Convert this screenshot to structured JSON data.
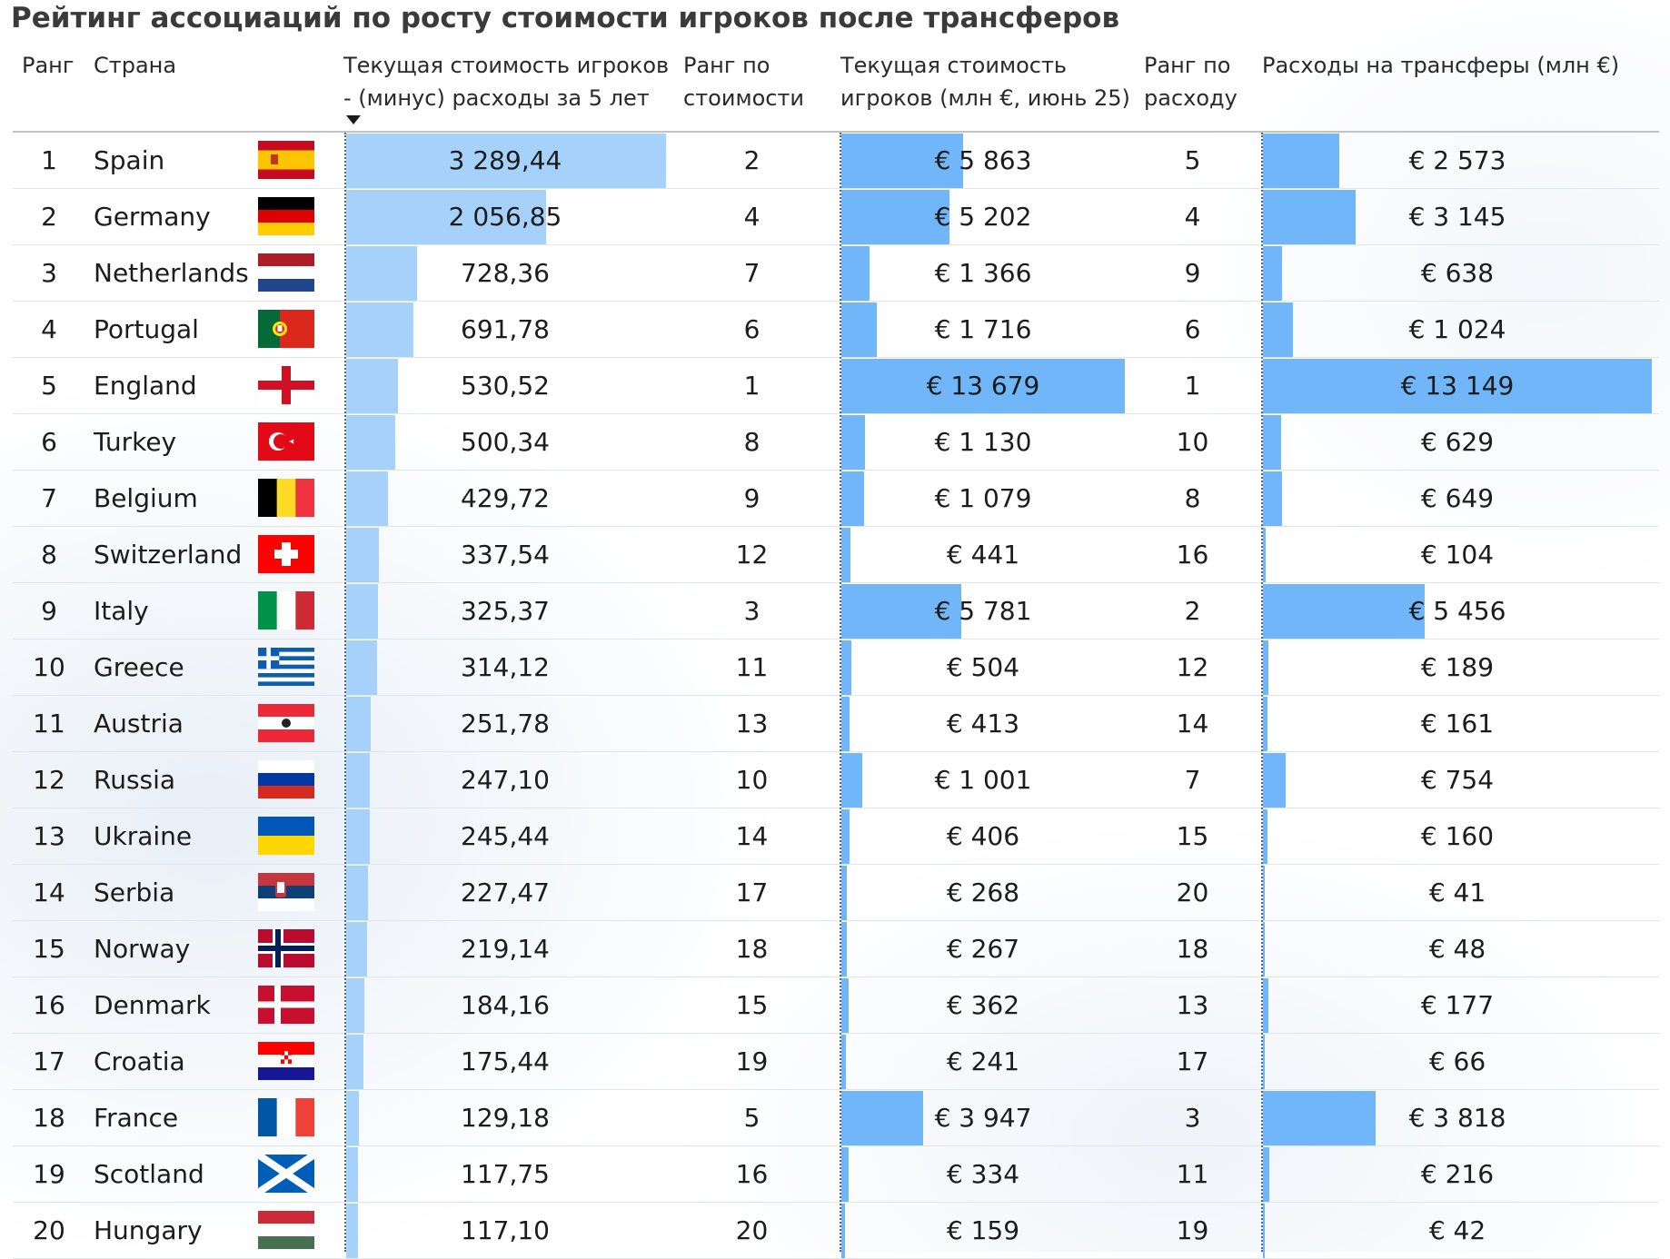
{
  "title": "Рейтинг ассоциаций по росту стоимости игроков после трансферов",
  "headers": {
    "rank": "Ранг",
    "country": "Страна",
    "diff_line1": "Текущая стоимость игроков",
    "diff_line2": "- (минус) расходы за 5 лет",
    "rank_value_line1": "Ранг по",
    "rank_value_line2": "стоимости",
    "value_line1": "Текущая стоимость",
    "value_line2": "игроков (млн €, июнь 25)",
    "rank_exp_line1": "Ранг по",
    "rank_exp_line2": "расходу",
    "expenses": "Расходы на трансферы (млн €)"
  },
  "sort": {
    "column": "diff",
    "direction": "descending"
  },
  "colors": {
    "bar_diff": "#a6d1fb",
    "bar_value": "#72b6fa",
    "bar_expenses": "#72b6fa"
  },
  "rows": [
    {
      "rank": "1",
      "country": "Spain",
      "flag": "spain-flag-icon",
      "diff_text": "3 289,44",
      "diff": 3289.44,
      "rank_value": "2",
      "value_text": "€ 5 863",
      "value": 5863,
      "rank_exp": "5",
      "exp_text": "€ 2 573",
      "exp": 2573
    },
    {
      "rank": "2",
      "country": "Germany",
      "flag": "germany-flag-icon",
      "diff_text": "2 056,85",
      "diff": 2056.85,
      "rank_value": "4",
      "value_text": "€ 5 202",
      "value": 5202,
      "rank_exp": "4",
      "exp_text": "€ 3 145",
      "exp": 3145
    },
    {
      "rank": "3",
      "country": "Netherlands",
      "flag": "netherlands-flag-icon",
      "diff_text": "728,36",
      "diff": 728.36,
      "rank_value": "7",
      "value_text": "€ 1 366",
      "value": 1366,
      "rank_exp": "9",
      "exp_text": "€ 638",
      "exp": 638
    },
    {
      "rank": "4",
      "country": "Portugal",
      "flag": "portugal-flag-icon",
      "diff_text": "691,78",
      "diff": 691.78,
      "rank_value": "6",
      "value_text": "€ 1 716",
      "value": 1716,
      "rank_exp": "6",
      "exp_text": "€ 1 024",
      "exp": 1024
    },
    {
      "rank": "5",
      "country": "England",
      "flag": "england-flag-icon",
      "diff_text": "530,52",
      "diff": 530.52,
      "rank_value": "1",
      "value_text": "€ 13 679",
      "value": 13679,
      "rank_exp": "1",
      "exp_text": "€ 13 149",
      "exp": 13149
    },
    {
      "rank": "6",
      "country": "Turkey",
      "flag": "turkey-flag-icon",
      "diff_text": "500,34",
      "diff": 500.34,
      "rank_value": "8",
      "value_text": "€ 1 130",
      "value": 1130,
      "rank_exp": "10",
      "exp_text": "€ 629",
      "exp": 629
    },
    {
      "rank": "7",
      "country": "Belgium",
      "flag": "belgium-flag-icon",
      "diff_text": "429,72",
      "diff": 429.72,
      "rank_value": "9",
      "value_text": "€ 1 079",
      "value": 1079,
      "rank_exp": "8",
      "exp_text": "€ 649",
      "exp": 649
    },
    {
      "rank": "8",
      "country": "Switzerland",
      "flag": "switzerland-flag-icon",
      "diff_text": "337,54",
      "diff": 337.54,
      "rank_value": "12",
      "value_text": "€ 441",
      "value": 441,
      "rank_exp": "16",
      "exp_text": "€ 104",
      "exp": 104
    },
    {
      "rank": "9",
      "country": "Italy",
      "flag": "italy-flag-icon",
      "diff_text": "325,37",
      "diff": 325.37,
      "rank_value": "3",
      "value_text": "€ 5 781",
      "value": 5781,
      "rank_exp": "2",
      "exp_text": "€ 5 456",
      "exp": 5456
    },
    {
      "rank": "10",
      "country": "Greece",
      "flag": "greece-flag-icon",
      "diff_text": "314,12",
      "diff": 314.12,
      "rank_value": "11",
      "value_text": "€ 504",
      "value": 504,
      "rank_exp": "12",
      "exp_text": "€ 189",
      "exp": 189
    },
    {
      "rank": "11",
      "country": "Austria",
      "flag": "austria-flag-icon",
      "diff_text": "251,78",
      "diff": 251.78,
      "rank_value": "13",
      "value_text": "€ 413",
      "value": 413,
      "rank_exp": "14",
      "exp_text": "€ 161",
      "exp": 161
    },
    {
      "rank": "12",
      "country": "Russia",
      "flag": "russia-flag-icon",
      "diff_text": "247,10",
      "diff": 247.1,
      "rank_value": "10",
      "value_text": "€ 1 001",
      "value": 1001,
      "rank_exp": "7",
      "exp_text": "€ 754",
      "exp": 754
    },
    {
      "rank": "13",
      "country": "Ukraine",
      "flag": "ukraine-flag-icon",
      "diff_text": "245,44",
      "diff": 245.44,
      "rank_value": "14",
      "value_text": "€ 406",
      "value": 406,
      "rank_exp": "15",
      "exp_text": "€ 160",
      "exp": 160
    },
    {
      "rank": "14",
      "country": "Serbia",
      "flag": "serbia-flag-icon",
      "diff_text": "227,47",
      "diff": 227.47,
      "rank_value": "17",
      "value_text": "€ 268",
      "value": 268,
      "rank_exp": "20",
      "exp_text": "€ 41",
      "exp": 41
    },
    {
      "rank": "15",
      "country": "Norway",
      "flag": "norway-flag-icon",
      "diff_text": "219,14",
      "diff": 219.14,
      "rank_value": "18",
      "value_text": "€ 267",
      "value": 267,
      "rank_exp": "18",
      "exp_text": "€ 48",
      "exp": 48
    },
    {
      "rank": "16",
      "country": "Denmark",
      "flag": "denmark-flag-icon",
      "diff_text": "184,16",
      "diff": 184.16,
      "rank_value": "15",
      "value_text": "€ 362",
      "value": 362,
      "rank_exp": "13",
      "exp_text": "€ 177",
      "exp": 177
    },
    {
      "rank": "17",
      "country": "Croatia",
      "flag": "croatia-flag-icon",
      "diff_text": "175,44",
      "diff": 175.44,
      "rank_value": "19",
      "value_text": "€ 241",
      "value": 241,
      "rank_exp": "17",
      "exp_text": "€ 66",
      "exp": 66
    },
    {
      "rank": "18",
      "country": "France",
      "flag": "france-flag-icon",
      "diff_text": "129,18",
      "diff": 129.18,
      "rank_value": "5",
      "value_text": "€ 3 947",
      "value": 3947,
      "rank_exp": "3",
      "exp_text": "€ 3 818",
      "exp": 3818
    },
    {
      "rank": "19",
      "country": "Scotland",
      "flag": "scotland-flag-icon",
      "diff_text": "117,75",
      "diff": 117.75,
      "rank_value": "16",
      "value_text": "€ 334",
      "value": 334,
      "rank_exp": "11",
      "exp_text": "€ 216",
      "exp": 216
    },
    {
      "rank": "20",
      "country": "Hungary",
      "flag": "hungary-flag-icon",
      "diff_text": "117,10",
      "diff": 117.1,
      "rank_value": "20",
      "value_text": "€ 159",
      "value": 159,
      "rank_exp": "19",
      "exp_text": "€ 42",
      "exp": 42
    }
  ]
}
